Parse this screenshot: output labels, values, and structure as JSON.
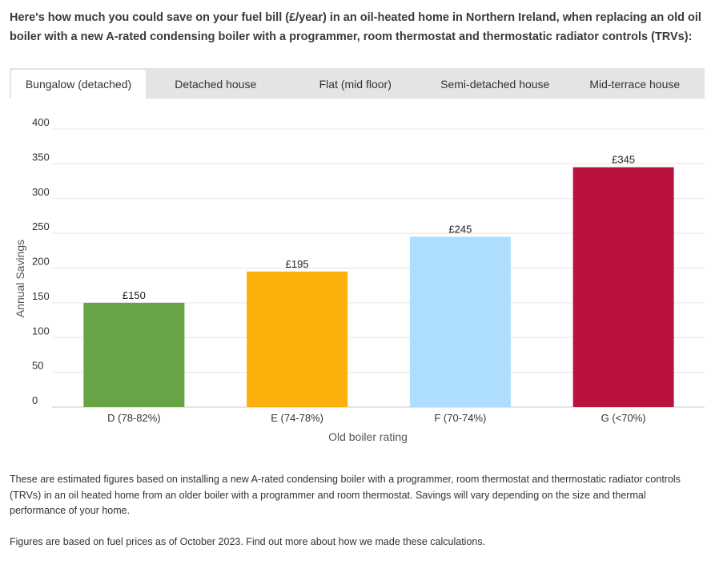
{
  "intro": {
    "text": "Here's how much you could save on your fuel bill (£/year) in an oil-heated home in Northern Ireland, when replacing an old oil boiler with a new A-rated condensing boiler with a programmer, room thermostat and thermostatic radiator controls (TRVs):"
  },
  "tabs": [
    {
      "label": "Bungalow (detached)",
      "active": true
    },
    {
      "label": "Detached house",
      "active": false
    },
    {
      "label": "Flat (mid floor)",
      "active": false
    },
    {
      "label": "Semi-detached house",
      "active": false
    },
    {
      "label": "Mid-terrace house",
      "active": false
    }
  ],
  "chart_data": {
    "type": "bar",
    "categories": [
      "D (78-82%)",
      "E (74-78%)",
      "F (70-74%)",
      "G (<70%)"
    ],
    "values": [
      150,
      195,
      245,
      345
    ],
    "data_labels": [
      "£150",
      "£195",
      "£245",
      "£345"
    ],
    "colors": [
      "#66a446",
      "#fdb00c",
      "#addeff",
      "#b9123d"
    ],
    "xlabel": "Old boiler rating",
    "ylabel": "Annual Savings",
    "ylim": [
      0,
      400
    ],
    "yticks": [
      0,
      50,
      100,
      150,
      200,
      250,
      300,
      350,
      400
    ],
    "grid": true,
    "legend": "none"
  },
  "notes": {
    "p1": "These are estimated figures based on installing a new A-rated condensing boiler with a programmer, room thermostat and thermostatic radiator controls (TRVs) in an oil heated home from an older boiler with a programmer and room thermostat. Savings will vary depending on the size and thermal performance of your home.",
    "p2": "Figures are based on fuel prices as of October 2023. Find out more about how we made these calculations."
  }
}
